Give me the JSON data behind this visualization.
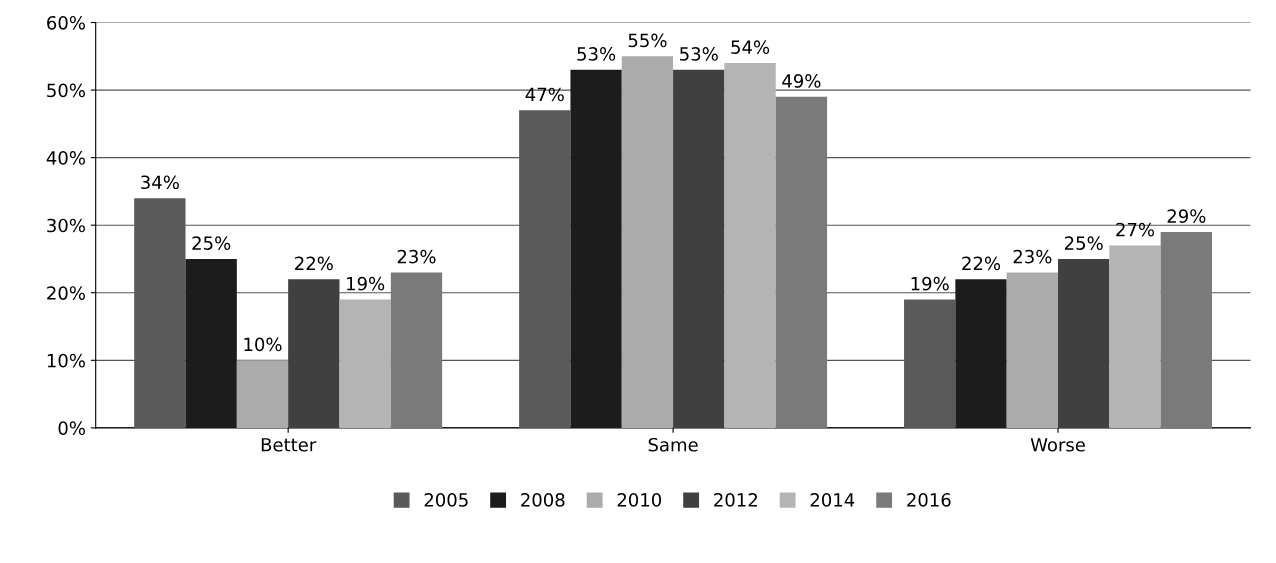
{
  "chart_data": {
    "type": "bar",
    "categories": [
      "Better",
      "Same",
      "Worse"
    ],
    "series": [
      {
        "name": "2005",
        "color": "#5a5a5a",
        "values": [
          34,
          47,
          19
        ],
        "value_labels": [
          "34%",
          "47%",
          "19%"
        ]
      },
      {
        "name": "2008",
        "color": "#1c1c1c",
        "values": [
          25,
          53,
          22
        ],
        "value_labels": [
          "25%",
          "53%",
          "22%"
        ]
      },
      {
        "name": "2010",
        "color": "#ababab",
        "values": [
          10,
          55,
          23
        ],
        "value_labels": [
          "10%",
          "55%",
          "23%"
        ]
      },
      {
        "name": "2012",
        "color": "#404040",
        "values": [
          22,
          53,
          25
        ],
        "value_labels": [
          "22%",
          "53%",
          "25%"
        ]
      },
      {
        "name": "2014",
        "color": "#b4b4b4",
        "values": [
          19,
          54,
          27
        ],
        "value_labels": [
          "19%",
          "54%",
          "27%"
        ]
      },
      {
        "name": "2016",
        "color": "#7a7a7a",
        "values": [
          23,
          49,
          29
        ],
        "value_labels": [
          "23%",
          "49%",
          "29%"
        ]
      }
    ],
    "ylim": [
      0,
      60
    ],
    "yticks": [
      {
        "value": 0,
        "label": "0%"
      },
      {
        "value": 10,
        "label": "10%"
      },
      {
        "value": 20,
        "label": "20%"
      },
      {
        "value": 30,
        "label": "30%"
      },
      {
        "value": 40,
        "label": "40%"
      },
      {
        "value": 50,
        "label": "50%"
      },
      {
        "value": 60,
        "label": "60%"
      }
    ],
    "grid": "y",
    "legend": "bottom"
  }
}
